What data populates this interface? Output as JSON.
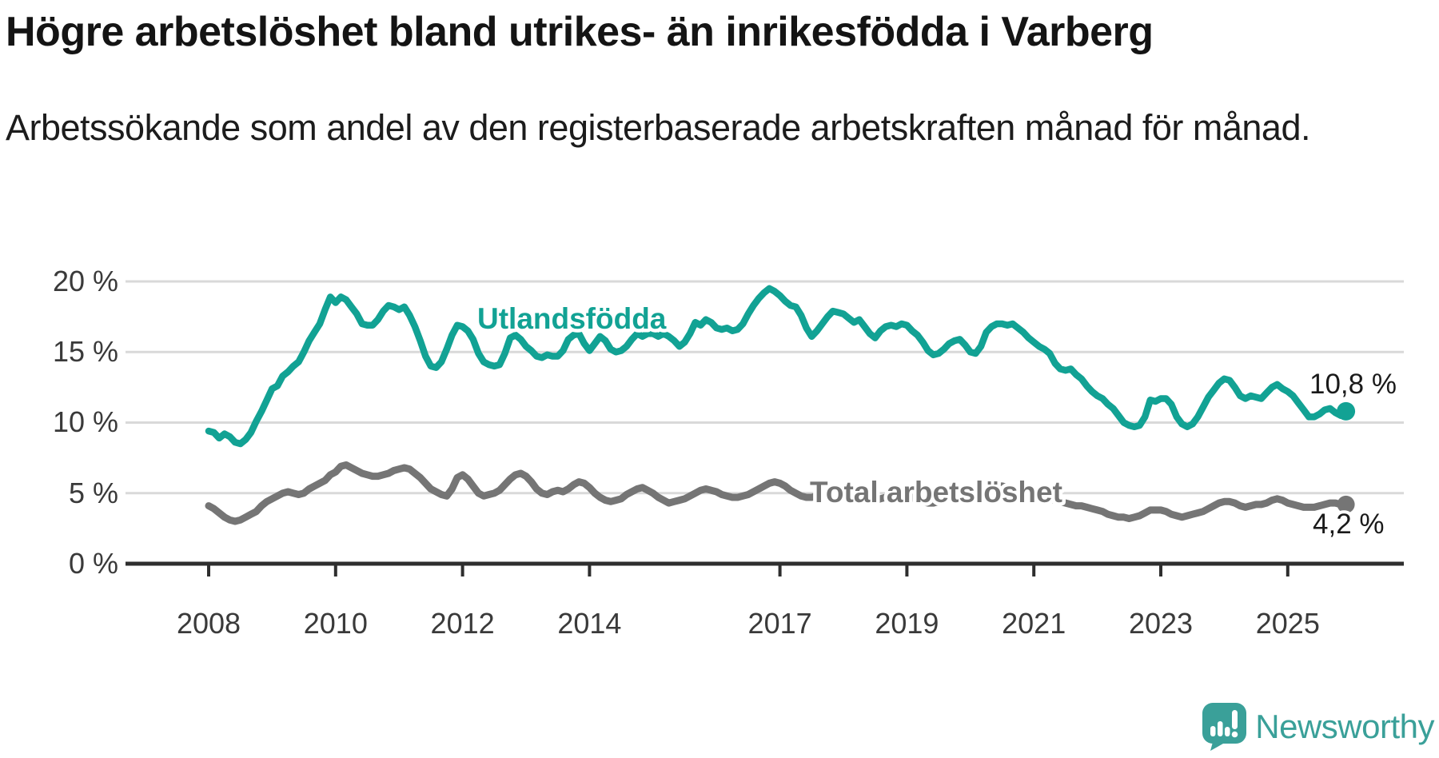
{
  "chart_data": {
    "type": "line",
    "title": "Högre arbetslöshet bland utrikes- än inrikesfödda i Varberg",
    "subtitle": "Arbetssökande som andel av den registerbaserade arbetskraften månad för månad.",
    "grid": true,
    "legend": "inline-labels",
    "colors": {
      "accent_teal": "#12a294",
      "accent_gray": "#757575",
      "axis": "#2e2e2e",
      "gridline": "#d9d9d9"
    },
    "x_axis": {
      "start_year": 2008,
      "points_per_year": 12,
      "ticks": [
        {
          "year": 2008,
          "label": "2008"
        },
        {
          "year": 2010,
          "label": "2010"
        },
        {
          "year": 2012,
          "label": "2012"
        },
        {
          "year": 2014,
          "label": "2014"
        },
        {
          "year": 2017,
          "label": "2017"
        },
        {
          "year": 2019,
          "label": "2019"
        },
        {
          "year": 2021,
          "label": "2021"
        },
        {
          "year": 2023,
          "label": "2023"
        },
        {
          "year": 2025,
          "label": "2025"
        }
      ]
    },
    "y_axis": {
      "unit": "%",
      "lim": [
        0,
        21.5
      ],
      "ticks": [
        {
          "value": 20,
          "label": "20 %"
        },
        {
          "value": 15,
          "label": "15 %"
        },
        {
          "value": 10,
          "label": "10 %"
        },
        {
          "value": 5,
          "label": "5 %"
        },
        {
          "value": 0,
          "label": "0 %"
        }
      ]
    },
    "series": [
      {
        "name": "Utlandsfödda",
        "color": "#12a294",
        "end_label": "10,8 %",
        "end_value": 10.8,
        "values": [
          9.4,
          9.3,
          8.9,
          9.2,
          9.0,
          8.6,
          8.5,
          8.8,
          9.3,
          10.1,
          10.8,
          11.6,
          12.4,
          12.6,
          13.3,
          13.6,
          14.0,
          14.3,
          15.0,
          15.8,
          16.4,
          17.0,
          18.0,
          18.9,
          18.5,
          18.9,
          18.7,
          18.2,
          17.7,
          17.0,
          16.9,
          16.9,
          17.3,
          17.9,
          18.3,
          18.2,
          18.0,
          18.2,
          17.6,
          16.8,
          15.8,
          14.7,
          14.0,
          13.9,
          14.3,
          15.2,
          16.2,
          16.9,
          16.8,
          16.5,
          15.9,
          14.9,
          14.3,
          14.1,
          14.0,
          14.1,
          14.9,
          16.0,
          16.2,
          15.9,
          15.4,
          15.1,
          14.7,
          14.6,
          14.8,
          14.7,
          14.7,
          15.1,
          15.9,
          16.2,
          16.3,
          15.6,
          15.1,
          15.6,
          16.1,
          15.8,
          15.2,
          15.0,
          15.1,
          15.4,
          15.9,
          16.3,
          16.1,
          16.3,
          16.3,
          16.1,
          16.3,
          16.1,
          15.8,
          15.4,
          15.7,
          16.3,
          17.1,
          16.9,
          17.3,
          17.1,
          16.7,
          16.6,
          16.7,
          16.5,
          16.6,
          17.0,
          17.7,
          18.3,
          18.8,
          19.2,
          19.5,
          19.3,
          19.0,
          18.6,
          18.3,
          18.2,
          17.6,
          16.7,
          16.1,
          16.5,
          17.0,
          17.5,
          17.9,
          17.8,
          17.7,
          17.4,
          17.1,
          17.3,
          16.8,
          16.3,
          16.0,
          16.5,
          16.8,
          16.9,
          16.8,
          17.0,
          16.9,
          16.5,
          16.2,
          15.7,
          15.1,
          14.8,
          14.9,
          15.2,
          15.6,
          15.8,
          15.9,
          15.5,
          15.0,
          14.9,
          15.4,
          16.4,
          16.8,
          17.0,
          17.0,
          16.9,
          17.0,
          16.7,
          16.4,
          16.0,
          15.7,
          15.4,
          15.2,
          14.9,
          14.2,
          13.8,
          13.7,
          13.8,
          13.4,
          13.1,
          12.6,
          12.2,
          11.9,
          11.7,
          11.3,
          11.0,
          10.5,
          10.0,
          9.8,
          9.7,
          9.8,
          10.4,
          11.6,
          11.5,
          11.7,
          11.7,
          11.3,
          10.4,
          9.9,
          9.7,
          9.9,
          10.4,
          11.1,
          11.8,
          12.3,
          12.8,
          13.1,
          13.0,
          12.5,
          11.9,
          11.7,
          11.9,
          11.8,
          11.7,
          12.1,
          12.5,
          12.7,
          12.4,
          12.2,
          11.9,
          11.4,
          10.9,
          10.4,
          10.4,
          10.6,
          10.9,
          11.0,
          10.7,
          10.5,
          10.8
        ]
      },
      {
        "name": "Total arbetslöshet",
        "color": "#757575",
        "end_label": "4,2 %",
        "end_value": 4.2,
        "values": [
          4.1,
          3.9,
          3.6,
          3.3,
          3.1,
          3.0,
          3.1,
          3.3,
          3.5,
          3.7,
          4.1,
          4.4,
          4.6,
          4.8,
          5.0,
          5.1,
          5.0,
          4.9,
          5.0,
          5.3,
          5.5,
          5.7,
          5.9,
          6.3,
          6.5,
          6.9,
          7.0,
          6.8,
          6.6,
          6.4,
          6.3,
          6.2,
          6.2,
          6.3,
          6.4,
          6.6,
          6.7,
          6.8,
          6.7,
          6.4,
          6.1,
          5.7,
          5.3,
          5.1,
          4.9,
          4.8,
          5.3,
          6.1,
          6.3,
          6.0,
          5.5,
          5.0,
          4.8,
          4.9,
          5.0,
          5.2,
          5.6,
          6.0,
          6.3,
          6.4,
          6.2,
          5.8,
          5.3,
          5.0,
          4.9,
          5.1,
          5.2,
          5.1,
          5.3,
          5.6,
          5.8,
          5.7,
          5.4,
          5.0,
          4.7,
          4.5,
          4.4,
          4.5,
          4.6,
          4.9,
          5.1,
          5.3,
          5.4,
          5.2,
          5.0,
          4.7,
          4.5,
          4.3,
          4.4,
          4.5,
          4.6,
          4.8,
          5.0,
          5.2,
          5.3,
          5.2,
          5.1,
          4.9,
          4.8,
          4.7,
          4.7,
          4.8,
          4.9,
          5.1,
          5.3,
          5.5,
          5.7,
          5.8,
          5.7,
          5.5,
          5.2,
          5.0,
          4.8,
          4.7,
          4.7,
          4.8,
          4.9,
          5.1,
          5.3,
          5.3,
          5.2,
          5.0,
          4.8,
          4.6,
          4.5,
          4.5,
          4.5,
          4.6,
          4.7,
          4.8,
          4.9,
          4.9,
          4.8,
          4.7,
          4.5,
          4.4,
          4.3,
          4.3,
          4.4,
          4.5,
          4.6,
          4.7,
          4.8,
          4.7,
          4.7,
          4.8,
          5.0,
          5.3,
          5.5,
          5.5,
          5.5,
          5.4,
          5.4,
          5.3,
          5.2,
          5.1,
          5.0,
          4.9,
          4.8,
          4.6,
          4.5,
          4.4,
          4.3,
          4.2,
          4.1,
          4.1,
          4.0,
          3.9,
          3.8,
          3.7,
          3.5,
          3.4,
          3.3,
          3.3,
          3.2,
          3.3,
          3.4,
          3.6,
          3.8,
          3.8,
          3.8,
          3.7,
          3.5,
          3.4,
          3.3,
          3.4,
          3.5,
          3.6,
          3.7,
          3.9,
          4.1,
          4.3,
          4.4,
          4.4,
          4.3,
          4.1,
          4.0,
          4.1,
          4.2,
          4.2,
          4.3,
          4.5,
          4.6,
          4.5,
          4.3,
          4.2,
          4.1,
          4.0,
          4.0,
          4.0,
          4.1,
          4.2,
          4.3,
          4.3,
          4.2,
          4.2
        ]
      }
    ]
  },
  "footer": {
    "brand": "Newsworthy"
  }
}
